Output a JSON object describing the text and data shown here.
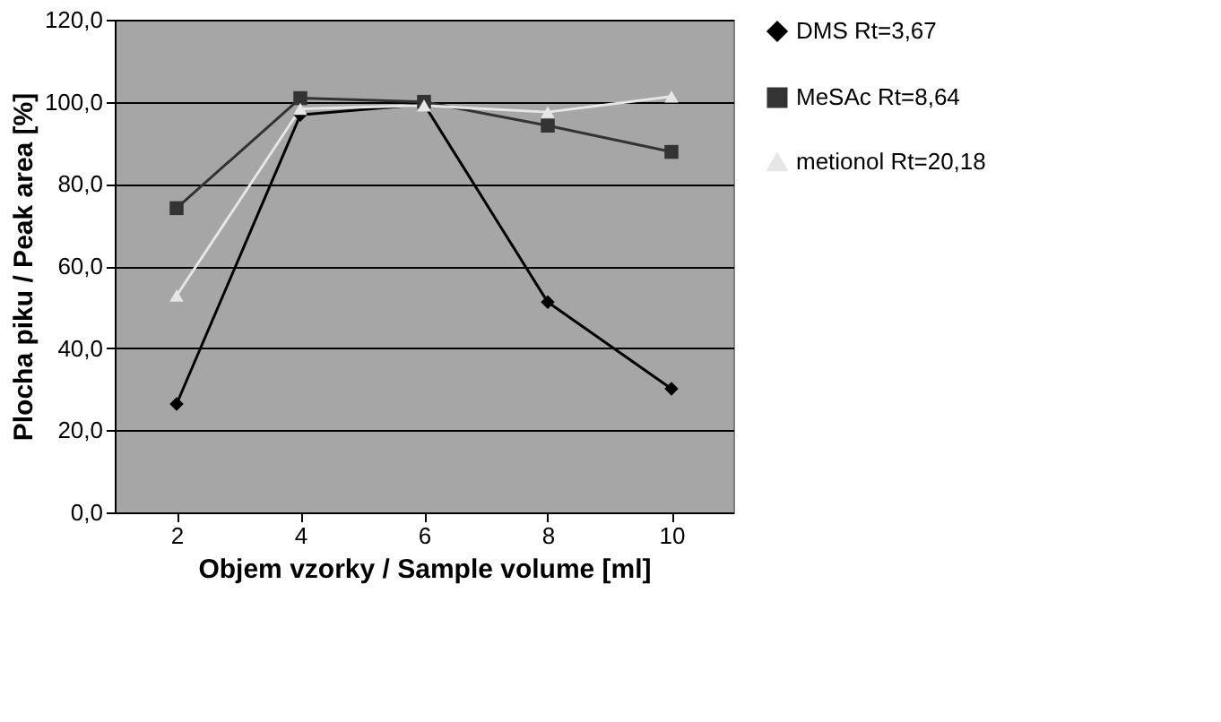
{
  "chart_data": {
    "type": "line",
    "xlabel": "Objem vzorky / Sample volume [ml]",
    "ylabel": "Plocha piku / Peak area [%]",
    "categories": [
      "2",
      "4",
      "6",
      "8",
      "10"
    ],
    "series": [
      {
        "name": "DMS Rt=3,67",
        "color": "#000000",
        "marker": "diamond",
        "values": [
          26.4,
          96.8,
          99.4,
          51.2,
          30.1
        ]
      },
      {
        "name": "MeSAc Rt=8,64",
        "color": "#333333",
        "marker": "square",
        "values": [
          74.1,
          100.9,
          100.0,
          94.2,
          87.8
        ]
      },
      {
        "name": "metionol Rt=20,18",
        "color": "#e6e6e6",
        "marker": "triangle",
        "values": [
          52.8,
          98.3,
          99.1,
          97.5,
          101.3
        ]
      }
    ],
    "ylim": [
      0,
      120
    ],
    "yticks": [
      {
        "value": 0,
        "label": "0,0"
      },
      {
        "value": 20,
        "label": "20,0"
      },
      {
        "value": 40,
        "label": "40,0"
      },
      {
        "value": 60,
        "label": "60,0"
      },
      {
        "value": 80,
        "label": "80,0"
      },
      {
        "value": 100,
        "label": "100,0"
      },
      {
        "value": 120,
        "label": "120,0"
      }
    ],
    "grid": "y",
    "legend": "right",
    "line_style": "solid"
  }
}
